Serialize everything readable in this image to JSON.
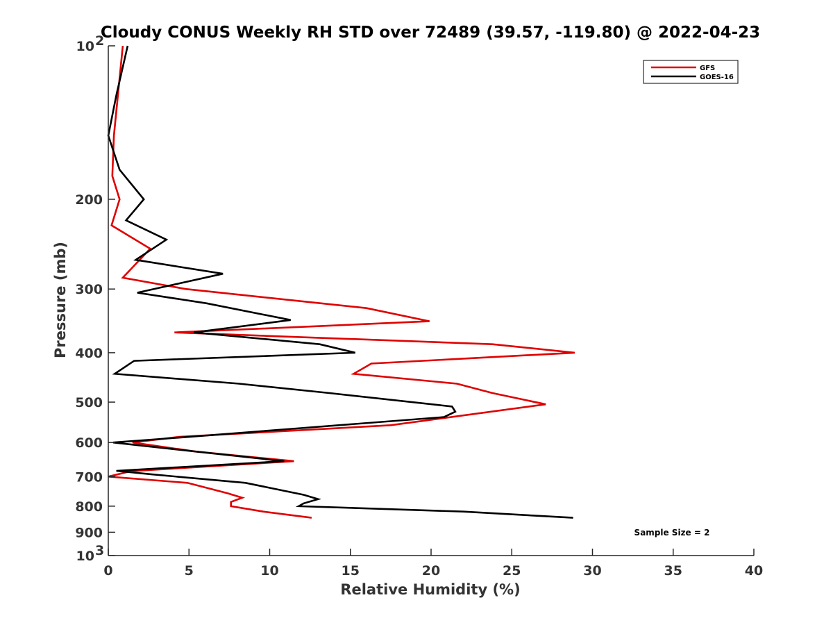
{
  "chart_data": {
    "type": "line",
    "title": "Cloudy CONUS Weekly RH STD over 72489 (39.57, -119.80) @ 2022-04-23",
    "xlabel": "Relative Humidity (%)",
    "ylabel": "Pressure (mb)",
    "xlim": [
      0,
      40
    ],
    "ylim": [
      100,
      1000
    ],
    "yscale": "log",
    "y_reversed": true,
    "xticks": [
      "0",
      "5",
      "10",
      "15",
      "20",
      "25",
      "30",
      "35",
      "40"
    ],
    "yticks": [
      {
        "value": 100,
        "label": "10",
        "sup": "2"
      },
      {
        "value": 200,
        "label": "200"
      },
      {
        "value": 300,
        "label": "300"
      },
      {
        "value": 400,
        "label": "400"
      },
      {
        "value": 500,
        "label": "500"
      },
      {
        "value": 600,
        "label": "600"
      },
      {
        "value": 700,
        "label": "700"
      },
      {
        "value": 800,
        "label": "800"
      },
      {
        "value": 900,
        "label": "900"
      },
      {
        "value": 1000,
        "label": "10",
        "sup": "3"
      }
    ],
    "grid": false,
    "legend_position": "top-right",
    "annotation": "Sample Size = 2",
    "series": [
      {
        "name": "GFS",
        "color": "#e00000",
        "points": [
          [
            0.9,
            100
          ],
          [
            0.35,
            150
          ],
          [
            0.25,
            180
          ],
          [
            0.7,
            200
          ],
          [
            0.2,
            225
          ],
          [
            2.6,
            250
          ],
          [
            0.9,
            285
          ],
          [
            4.8,
            300
          ],
          [
            16.0,
            327
          ],
          [
            19.9,
            347
          ],
          [
            4.1,
            365
          ],
          [
            23.8,
            385
          ],
          [
            28.9,
            400
          ],
          [
            16.3,
            420
          ],
          [
            15.2,
            440
          ],
          [
            21.6,
            460
          ],
          [
            23.8,
            480
          ],
          [
            27.1,
            505
          ],
          [
            17.5,
            555
          ],
          [
            4.4,
            585
          ],
          [
            1.5,
            600
          ],
          [
            5.4,
            625
          ],
          [
            11.5,
            653
          ],
          [
            1.4,
            683
          ],
          [
            0.0,
            700
          ],
          [
            4.9,
            720
          ],
          [
            7.4,
            755
          ],
          [
            8.3,
            770
          ],
          [
            7.6,
            785
          ],
          [
            7.6,
            800
          ],
          [
            9.6,
            820
          ],
          [
            12.6,
            843
          ]
        ]
      },
      {
        "name": "GOES-16",
        "color": "#000000",
        "points": [
          [
            1.2,
            100
          ],
          [
            0.5,
            125
          ],
          [
            0.0,
            150
          ],
          [
            0.7,
            175
          ],
          [
            2.2,
            200
          ],
          [
            1.1,
            220
          ],
          [
            3.6,
            240
          ],
          [
            1.7,
            263
          ],
          [
            7.1,
            280
          ],
          [
            1.8,
            305
          ],
          [
            6.1,
            320
          ],
          [
            11.3,
            345
          ],
          [
            5.3,
            365
          ],
          [
            13.1,
            385
          ],
          [
            15.3,
            400
          ],
          [
            1.6,
            415
          ],
          [
            0.4,
            440
          ],
          [
            8.1,
            460
          ],
          [
            13.7,
            480
          ],
          [
            21.3,
            510
          ],
          [
            21.5,
            522
          ],
          [
            20.8,
            535
          ],
          [
            11.1,
            565
          ],
          [
            5.0,
            585
          ],
          [
            0.3,
            600
          ],
          [
            5.8,
            627
          ],
          [
            10.9,
            653
          ],
          [
            0.5,
            682
          ],
          [
            2.7,
            693
          ],
          [
            8.5,
            720
          ],
          [
            12.1,
            760
          ],
          [
            13.0,
            775
          ],
          [
            12.1,
            790
          ],
          [
            11.8,
            800
          ],
          [
            22.0,
            820
          ],
          [
            28.8,
            843
          ]
        ]
      }
    ]
  }
}
